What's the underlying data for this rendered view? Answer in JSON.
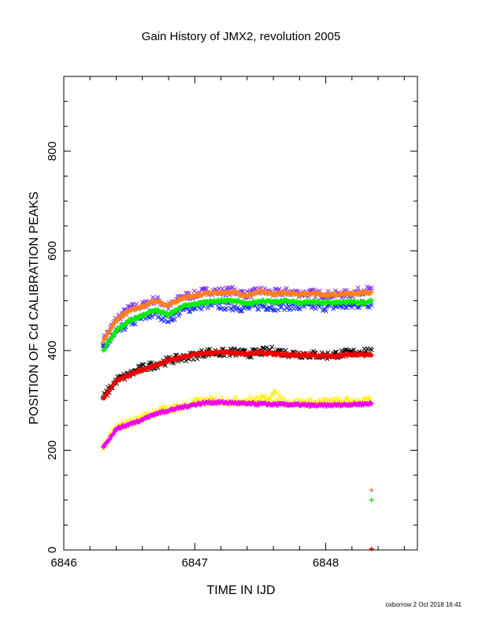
{
  "chart_data": {
    "type": "scatter",
    "title": "Gain History of JMX2, revolution 2005",
    "xlabel": "TIME IN IJD",
    "ylabel": "POSITION OF Cd CALIBRATION PEAKS",
    "xlim": [
      6846,
      6848.7
    ],
    "ylim": [
      0,
      950
    ],
    "xticks": [
      6846,
      6847,
      6848
    ],
    "yticks": [
      0,
      200,
      400,
      600,
      800
    ],
    "grid": false,
    "legend": "none",
    "credit": "oxborrow  2 Oct 2018 16:41",
    "x_start": 6846.3,
    "x_end": 6848.35,
    "series": [
      {
        "color": "#7f2fef",
        "marker": "x",
        "points": [
          [
            6846.3,
            420
          ],
          [
            6846.4,
            462
          ],
          [
            6846.5,
            485
          ],
          [
            6846.6,
            490
          ],
          [
            6846.7,
            503
          ],
          [
            6846.8,
            488
          ],
          [
            6846.9,
            508
          ],
          [
            6847.0,
            512
          ],
          [
            6847.1,
            520
          ],
          [
            6847.2,
            518
          ],
          [
            6847.3,
            520
          ],
          [
            6847.4,
            512
          ],
          [
            6847.5,
            520
          ],
          [
            6847.6,
            515
          ],
          [
            6847.7,
            518
          ],
          [
            6847.8,
            515
          ],
          [
            6847.9,
            515
          ],
          [
            6848.0,
            512
          ],
          [
            6848.1,
            512
          ],
          [
            6848.2,
            515
          ],
          [
            6848.3,
            522
          ],
          [
            6848.35,
            520
          ]
        ]
      },
      {
        "color": "#1f2fef",
        "marker": "x",
        "points": [
          [
            6846.3,
            402
          ],
          [
            6846.4,
            435
          ],
          [
            6846.5,
            455
          ],
          [
            6846.6,
            465
          ],
          [
            6846.7,
            475
          ],
          [
            6846.8,
            462
          ],
          [
            6846.9,
            480
          ],
          [
            6847.0,
            488
          ],
          [
            6847.1,
            492
          ],
          [
            6847.2,
            490
          ],
          [
            6847.3,
            488
          ],
          [
            6847.4,
            485
          ],
          [
            6847.5,
            490
          ],
          [
            6847.6,
            488
          ],
          [
            6847.7,
            490
          ],
          [
            6847.8,
            487
          ],
          [
            6847.9,
            490
          ],
          [
            6848.0,
            487
          ],
          [
            6848.1,
            490
          ],
          [
            6848.2,
            490
          ],
          [
            6848.3,
            495
          ],
          [
            6848.35,
            493
          ]
        ]
      },
      {
        "color": "#ff7f1f",
        "marker": "+",
        "points": [
          [
            6846.3,
            420
          ],
          [
            6846.4,
            460
          ],
          [
            6846.5,
            480
          ],
          [
            6846.6,
            488
          ],
          [
            6846.7,
            500
          ],
          [
            6846.8,
            490
          ],
          [
            6846.9,
            505
          ],
          [
            6847.0,
            510
          ],
          [
            6847.1,
            515
          ],
          [
            6847.2,
            516
          ],
          [
            6847.3,
            517
          ],
          [
            6847.4,
            510
          ],
          [
            6847.5,
            518
          ],
          [
            6847.6,
            513
          ],
          [
            6847.7,
            516
          ],
          [
            6847.8,
            513
          ],
          [
            6847.9,
            515
          ],
          [
            6848.0,
            512
          ],
          [
            6848.1,
            512
          ],
          [
            6848.2,
            515
          ],
          [
            6848.3,
            515
          ],
          [
            6848.35,
            518
          ]
        ]
      },
      {
        "color": "#00ef00",
        "marker": "+",
        "points": [
          [
            6846.3,
            400
          ],
          [
            6846.4,
            440
          ],
          [
            6846.5,
            460
          ],
          [
            6846.6,
            470
          ],
          [
            6846.7,
            482
          ],
          [
            6846.8,
            472
          ],
          [
            6846.9,
            488
          ],
          [
            6847.0,
            493
          ],
          [
            6847.1,
            498
          ],
          [
            6847.2,
            500
          ],
          [
            6847.3,
            500
          ],
          [
            6847.4,
            493
          ],
          [
            6847.5,
            500
          ],
          [
            6847.6,
            497
          ],
          [
            6847.7,
            500
          ],
          [
            6847.8,
            496
          ],
          [
            6847.9,
            498
          ],
          [
            6848.0,
            496
          ],
          [
            6848.1,
            496
          ],
          [
            6848.2,
            498
          ],
          [
            6848.3,
            496
          ],
          [
            6848.35,
            500
          ]
        ]
      },
      {
        "color": "#000000",
        "marker": "x",
        "points": [
          [
            6846.3,
            305
          ],
          [
            6846.4,
            340
          ],
          [
            6846.5,
            352
          ],
          [
            6846.6,
            365
          ],
          [
            6846.7,
            372
          ],
          [
            6846.8,
            380
          ],
          [
            6846.9,
            385
          ],
          [
            6847.0,
            390
          ],
          [
            6847.1,
            397
          ],
          [
            6847.2,
            395
          ],
          [
            6847.3,
            397
          ],
          [
            6847.4,
            393
          ],
          [
            6847.5,
            397
          ],
          [
            6847.6,
            400
          ],
          [
            6847.7,
            395
          ],
          [
            6847.8,
            393
          ],
          [
            6847.9,
            392
          ],
          [
            6848.0,
            390
          ],
          [
            6848.1,
            393
          ],
          [
            6848.2,
            395
          ],
          [
            6848.3,
            400
          ],
          [
            6848.35,
            395
          ]
        ]
      },
      {
        "color": "#ef0000",
        "marker": "+",
        "points": [
          [
            6846.3,
            303
          ],
          [
            6846.4,
            340
          ],
          [
            6846.5,
            350
          ],
          [
            6846.6,
            362
          ],
          [
            6846.7,
            370
          ],
          [
            6846.8,
            380
          ],
          [
            6846.9,
            386
          ],
          [
            6847.0,
            392
          ],
          [
            6847.1,
            395
          ],
          [
            6847.2,
            396
          ],
          [
            6847.3,
            395
          ],
          [
            6847.4,
            394
          ],
          [
            6847.5,
            396
          ],
          [
            6847.6,
            393
          ],
          [
            6847.7,
            392
          ],
          [
            6847.8,
            391
          ],
          [
            6847.9,
            390
          ],
          [
            6848.0,
            389
          ],
          [
            6848.1,
            390
          ],
          [
            6848.2,
            392
          ],
          [
            6848.3,
            391
          ],
          [
            6848.35,
            392
          ]
        ]
      },
      {
        "color": "#ffef00",
        "marker": "x",
        "points": [
          [
            6846.3,
            205
          ],
          [
            6846.4,
            245
          ],
          [
            6846.5,
            255
          ],
          [
            6846.6,
            265
          ],
          [
            6846.7,
            278
          ],
          [
            6846.8,
            282
          ],
          [
            6846.9,
            288
          ],
          [
            6847.0,
            295
          ],
          [
            6847.1,
            298
          ],
          [
            6847.2,
            300
          ],
          [
            6847.3,
            298
          ],
          [
            6847.4,
            300
          ],
          [
            6847.5,
            300
          ],
          [
            6847.6,
            312
          ],
          [
            6847.7,
            296
          ],
          [
            6847.8,
            295
          ],
          [
            6847.9,
            295
          ],
          [
            6848.0,
            296
          ],
          [
            6848.1,
            297
          ],
          [
            6848.2,
            298
          ],
          [
            6848.3,
            297
          ],
          [
            6848.35,
            297
          ]
        ]
      },
      {
        "color": "#ef00ef",
        "marker": "+",
        "points": [
          [
            6846.3,
            205
          ],
          [
            6846.4,
            243
          ],
          [
            6846.5,
            252
          ],
          [
            6846.6,
            262
          ],
          [
            6846.7,
            273
          ],
          [
            6846.8,
            280
          ],
          [
            6846.9,
            286
          ],
          [
            6847.0,
            292
          ],
          [
            6847.1,
            296
          ],
          [
            6847.2,
            296
          ],
          [
            6847.3,
            295
          ],
          [
            6847.4,
            293
          ],
          [
            6847.5,
            293
          ],
          [
            6847.6,
            292
          ],
          [
            6847.7,
            292
          ],
          [
            6847.8,
            291
          ],
          [
            6847.9,
            290
          ],
          [
            6848.0,
            290
          ],
          [
            6848.1,
            291
          ],
          [
            6848.2,
            292
          ],
          [
            6848.3,
            293
          ],
          [
            6848.35,
            294
          ]
        ]
      }
    ],
    "stray_markers": [
      {
        "color": "#ff7f1f",
        "marker": "+",
        "x": 6848.35,
        "y": 120
      },
      {
        "color": "#00ef00",
        "marker": "+",
        "x": 6848.35,
        "y": 100
      },
      {
        "color": "#ef0000",
        "marker": "+",
        "x": 6848.35,
        "y": 2
      }
    ]
  }
}
